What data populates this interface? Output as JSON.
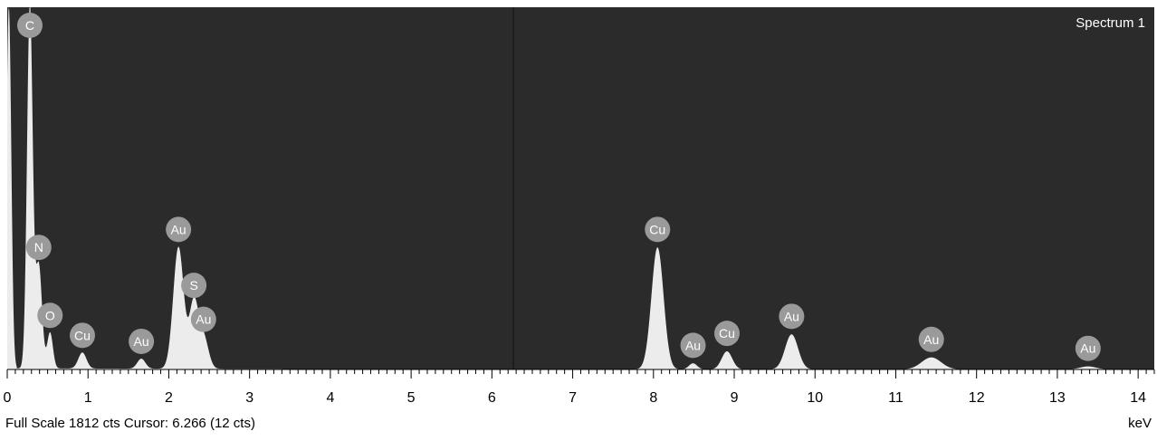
{
  "chart_data": {
    "type": "area",
    "title": "Spectrum 1",
    "xlabel": "keV",
    "xlim": [
      0,
      14.2
    ],
    "ylim": [
      0,
      1812
    ],
    "x_ticks": [
      0,
      1,
      2,
      3,
      4,
      5,
      6,
      7,
      8,
      9,
      10,
      11,
      12,
      13,
      14
    ],
    "x_tick_labels": [
      "0",
      "1",
      "2",
      "3",
      "4",
      "5",
      "6",
      "7",
      "8",
      "9",
      "10",
      "11",
      "12",
      "13",
      "14"
    ],
    "cursor_keV": 6.266,
    "cursor_counts": 12,
    "full_scale_counts": 1812,
    "grid": false,
    "colors": {
      "plot_bg": "#2b2b2b",
      "fill": "#ececec",
      "badge": "#9a9a9a",
      "cursor": "#111111"
    },
    "peaks": [
      {
        "element": "C",
        "x": 0.28,
        "y": 1812
      },
      {
        "element": "N",
        "x": 0.39,
        "y": 520
      },
      {
        "element": "O",
        "x": 0.53,
        "y": 180
      },
      {
        "element": "Cu",
        "x": 0.93,
        "y": 80
      },
      {
        "element": "Au",
        "x": 1.66,
        "y": 50
      },
      {
        "element": "Au",
        "x": 2.12,
        "y": 610
      },
      {
        "element": "S",
        "x": 2.31,
        "y": 330
      },
      {
        "element": "Au",
        "x": 2.43,
        "y": 160
      },
      {
        "element": "Cu",
        "x": 8.05,
        "y": 610
      },
      {
        "element": "Au",
        "x": 8.49,
        "y": 30
      },
      {
        "element": "Cu",
        "x": 8.91,
        "y": 90
      },
      {
        "element": "Au",
        "x": 9.71,
        "y": 175
      },
      {
        "element": "Au",
        "x": 11.44,
        "y": 60
      },
      {
        "element": "Au",
        "x": 13.38,
        "y": 15
      }
    ]
  },
  "status_bar": {
    "full_scale": "Full Scale 1812 cts Cursor: 6.266  (12 cts)",
    "unit": "keV"
  }
}
